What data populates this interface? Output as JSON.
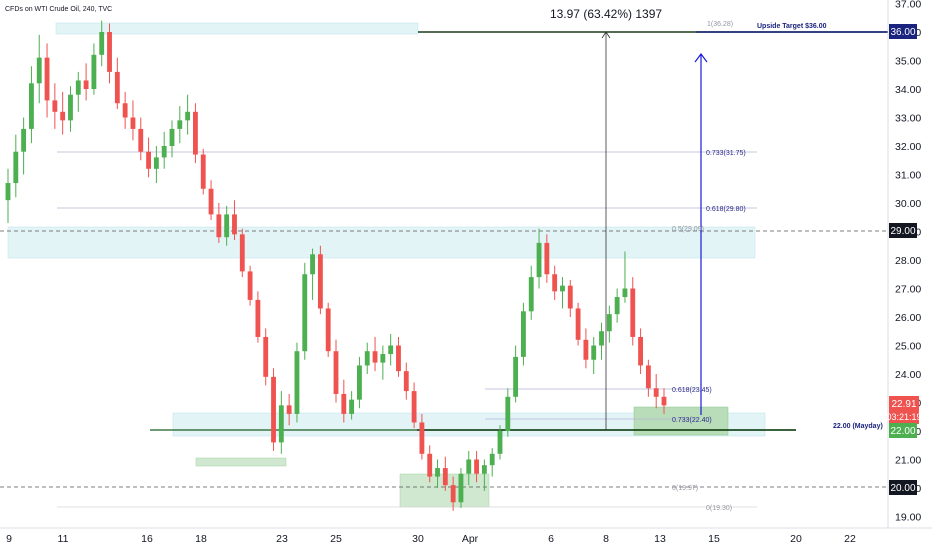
{
  "header": {
    "title": "CFDs on WTI Crude Oil, 240, TVC"
  },
  "measure": {
    "label": "13.97 (63.42%) 1397"
  },
  "chart_data": {
    "type": "candlestick",
    "ylim": [
      18.7,
      37.4
    ],
    "y_ticks": [
      "19.00",
      "20.00",
      "21.00",
      "22.00",
      "23.00",
      "24.00",
      "25.00",
      "26.00",
      "27.00",
      "28.00",
      "29.00",
      "30.00",
      "31.00",
      "32.00",
      "33.00",
      "34.00",
      "35.00",
      "36.00",
      "37.00"
    ],
    "x_ticks": [
      "9",
      "11",
      "16",
      "18",
      "23",
      "25",
      "30",
      "Apr",
      "6",
      "8",
      "13",
      "15",
      "20",
      "22"
    ],
    "price_tags": {
      "target": "36.00",
      "current": "22.91",
      "countdown": "03:21:19",
      "support": "22.00",
      "resistance": "29.00",
      "low": "20.00"
    },
    "annotations": {
      "upside_target": "Upside Target $36.00",
      "mayday": "22.00 (Mayday)",
      "fib_1": "1(36.28)",
      "fib_0733_upper": "0.733(31.75)",
      "fib_0618_upper": "0.618(29.80)",
      "fib_05": "0.5(29.09)",
      "fib_0618_lower": "0.618(23.45)",
      "fib_0733_lower": "0.733(22.40)",
      "fib_0_mid": "0(19.97)",
      "fib_0": "0(19.30)"
    },
    "colors": {
      "up": "#4caf50",
      "down": "#ef5350",
      "target": "#1a237e",
      "current_tag": "#ef5350",
      "support_tag": "#4caf50"
    },
    "candles": [
      [
        30.1,
        31.2,
        29.3,
        30.7
      ],
      [
        30.7,
        32.4,
        30.2,
        31.8
      ],
      [
        31.8,
        33.0,
        31.0,
        32.6
      ],
      [
        32.6,
        34.8,
        32.1,
        34.2
      ],
      [
        34.2,
        35.9,
        33.5,
        35.1
      ],
      [
        35.1,
        35.6,
        33.0,
        33.6
      ],
      [
        33.6,
        34.2,
        32.6,
        33.2
      ],
      [
        33.2,
        33.9,
        32.4,
        32.9
      ],
      [
        32.9,
        34.1,
        32.5,
        33.8
      ],
      [
        33.8,
        34.6,
        33.2,
        34.3
      ],
      [
        34.3,
        34.9,
        33.6,
        34.0
      ],
      [
        34.0,
        35.6,
        33.8,
        35.2
      ],
      [
        35.2,
        36.4,
        34.8,
        36.0
      ],
      [
        36.0,
        36.3,
        34.2,
        34.6
      ],
      [
        34.6,
        35.1,
        33.3,
        33.5
      ],
      [
        33.5,
        33.9,
        32.6,
        33.0
      ],
      [
        33.0,
        33.6,
        32.2,
        32.6
      ],
      [
        32.6,
        33.0,
        31.5,
        31.8
      ],
      [
        31.8,
        32.3,
        30.9,
        31.2
      ],
      [
        31.2,
        32.0,
        30.7,
        31.6
      ],
      [
        31.6,
        32.5,
        31.2,
        32.0
      ],
      [
        32.0,
        32.9,
        31.6,
        32.6
      ],
      [
        32.6,
        33.4,
        32.1,
        32.9
      ],
      [
        32.9,
        33.8,
        32.4,
        33.2
      ],
      [
        33.2,
        33.5,
        31.4,
        31.7
      ],
      [
        31.7,
        31.9,
        30.3,
        30.5
      ],
      [
        30.5,
        30.8,
        29.4,
        29.6
      ],
      [
        29.6,
        30.0,
        28.6,
        28.8
      ],
      [
        28.8,
        29.9,
        28.5,
        29.6
      ],
      [
        29.6,
        30.1,
        28.7,
        28.9
      ],
      [
        28.9,
        29.1,
        27.4,
        27.6
      ],
      [
        27.6,
        27.8,
        26.4,
        26.6
      ],
      [
        26.6,
        26.9,
        25.1,
        25.3
      ],
      [
        25.3,
        25.6,
        23.6,
        23.9
      ],
      [
        23.9,
        24.2,
        21.3,
        21.6
      ],
      [
        21.6,
        23.4,
        21.2,
        22.9
      ],
      [
        22.9,
        23.3,
        22.2,
        22.6
      ],
      [
        22.6,
        25.1,
        22.3,
        24.8
      ],
      [
        24.8,
        27.9,
        24.5,
        27.5
      ],
      [
        27.5,
        28.4,
        26.6,
        28.2
      ],
      [
        28.2,
        28.5,
        26.1,
        26.3
      ],
      [
        26.3,
        26.5,
        24.6,
        24.8
      ],
      [
        24.8,
        25.2,
        23.0,
        23.3
      ],
      [
        23.3,
        23.8,
        22.3,
        22.6
      ],
      [
        22.6,
        23.4,
        22.4,
        23.1
      ],
      [
        23.1,
        24.6,
        22.8,
        24.3
      ],
      [
        24.3,
        25.1,
        24.0,
        24.8
      ],
      [
        24.8,
        25.3,
        24.1,
        24.4
      ],
      [
        24.4,
        25.0,
        23.8,
        24.7
      ],
      [
        24.7,
        25.4,
        24.3,
        25.0
      ],
      [
        25.0,
        25.3,
        23.9,
        24.1
      ],
      [
        24.1,
        24.4,
        23.1,
        23.4
      ],
      [
        23.4,
        23.7,
        22.1,
        22.3
      ],
      [
        22.3,
        22.6,
        21.0,
        21.2
      ],
      [
        21.2,
        21.5,
        20.2,
        20.4
      ],
      [
        20.4,
        21.0,
        20.0,
        20.7
      ],
      [
        20.7,
        21.1,
        19.9,
        20.1
      ],
      [
        20.1,
        20.4,
        19.2,
        19.5
      ],
      [
        19.5,
        20.7,
        19.3,
        20.5
      ],
      [
        20.5,
        21.3,
        20.1,
        21.0
      ],
      [
        21.0,
        21.3,
        20.2,
        20.5
      ],
      [
        20.5,
        21.0,
        19.9,
        20.8
      ],
      [
        20.8,
        21.4,
        20.4,
        21.2
      ],
      [
        21.2,
        22.2,
        21.0,
        22.0
      ],
      [
        22.0,
        23.5,
        21.8,
        23.2
      ],
      [
        23.2,
        25.0,
        23.0,
        24.6
      ],
      [
        24.6,
        26.5,
        24.3,
        26.2
      ],
      [
        26.2,
        27.8,
        25.9,
        27.4
      ],
      [
        27.4,
        29.1,
        27.0,
        28.6
      ],
      [
        28.6,
        28.9,
        27.2,
        27.5
      ],
      [
        27.5,
        27.8,
        26.6,
        26.9
      ],
      [
        26.9,
        27.4,
        26.3,
        27.1
      ],
      [
        27.1,
        27.3,
        26.0,
        26.3
      ],
      [
        26.3,
        26.5,
        25.0,
        25.2
      ],
      [
        25.2,
        25.6,
        24.2,
        24.5
      ],
      [
        24.5,
        25.3,
        24.0,
        25.0
      ],
      [
        25.0,
        25.8,
        24.5,
        25.5
      ],
      [
        25.5,
        26.4,
        25.1,
        26.1
      ],
      [
        26.1,
        27.0,
        25.8,
        26.7
      ],
      [
        26.7,
        28.3,
        26.5,
        27.0
      ],
      [
        27.0,
        27.4,
        25.0,
        25.3
      ],
      [
        25.3,
        25.6,
        24.0,
        24.3
      ],
      [
        24.3,
        24.5,
        23.2,
        23.5
      ],
      [
        23.5,
        24.0,
        22.8,
        23.2
      ],
      [
        23.2,
        23.5,
        22.6,
        22.9
      ]
    ]
  }
}
